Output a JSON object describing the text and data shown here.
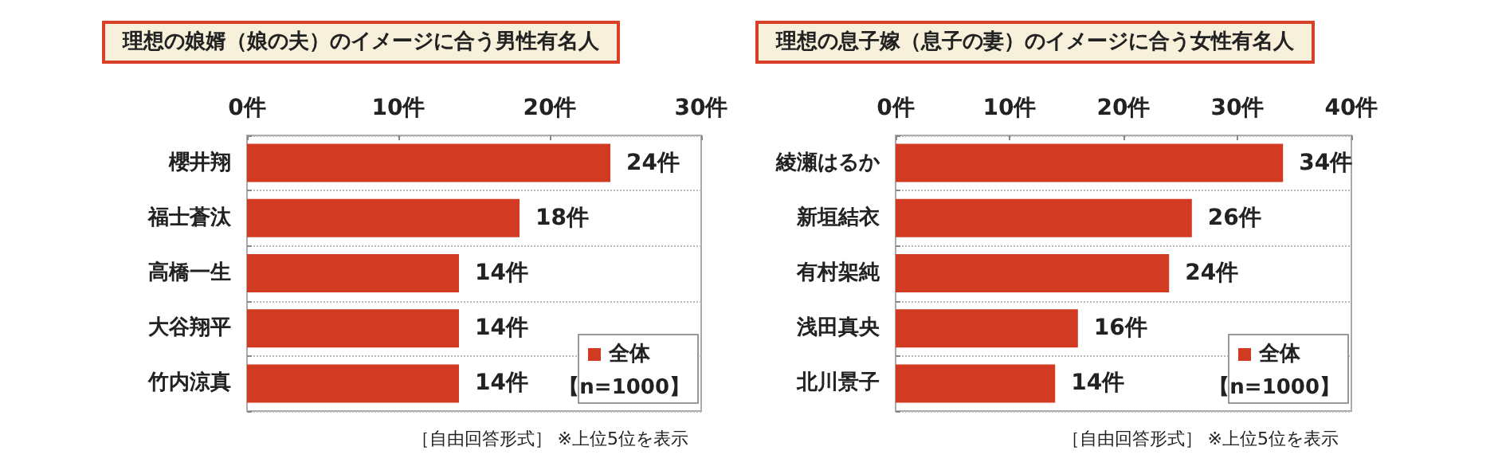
{
  "chart_data": [
    {
      "type": "bar",
      "orientation": "horizontal",
      "title": "理想の娘婿（娘の夫）のイメージに合う男性有名人",
      "categories": [
        "櫻井翔",
        "福士蒼汰",
        "高橋一生",
        "大谷翔平",
        "竹内涼真"
      ],
      "series": [
        {
          "name": "全体",
          "color": "#d23a22",
          "values": [
            24,
            18,
            14,
            14,
            14
          ],
          "value_labels": [
            "24件",
            "18件",
            "14件",
            "14件",
            "14件"
          ]
        }
      ],
      "xlim": [
        0,
        30
      ],
      "xticks": [
        {
          "value": 0,
          "label": "0件"
        },
        {
          "value": 10,
          "label": "10件"
        },
        {
          "value": 20,
          "label": "20件"
        },
        {
          "value": 30,
          "label": "30件"
        }
      ],
      "legend": "bottom right",
      "legend_title": "【n=1000】",
      "grid": "y",
      "annotations": [
        "［自由回答形式］ ※上位5位を表示"
      ]
    },
    {
      "type": "bar",
      "orientation": "horizontal",
      "title": "理想の息子嫁（息子の妻）のイメージに合う女性有名人",
      "categories": [
        "綾瀬はるか",
        "新垣結衣",
        "有村架純",
        "浅田真央",
        "北川景子"
      ],
      "series": [
        {
          "name": "全体",
          "color": "#d23a22",
          "values": [
            34,
            26,
            24,
            16,
            14
          ],
          "value_labels": [
            "34件",
            "26件",
            "24件",
            "16件",
            "14件"
          ]
        }
      ],
      "xlim": [
        0,
        40
      ],
      "xticks": [
        {
          "value": 0,
          "label": "0件"
        },
        {
          "value": 10,
          "label": "10件"
        },
        {
          "value": 20,
          "label": "20件"
        },
        {
          "value": 30,
          "label": "30件"
        },
        {
          "value": 40,
          "label": "40件"
        }
      ],
      "legend": "bottom right",
      "legend_title": "【n=1000】",
      "grid": "y",
      "annotations": [
        "［自由回答形式］ ※上位5位を表示"
      ]
    }
  ]
}
